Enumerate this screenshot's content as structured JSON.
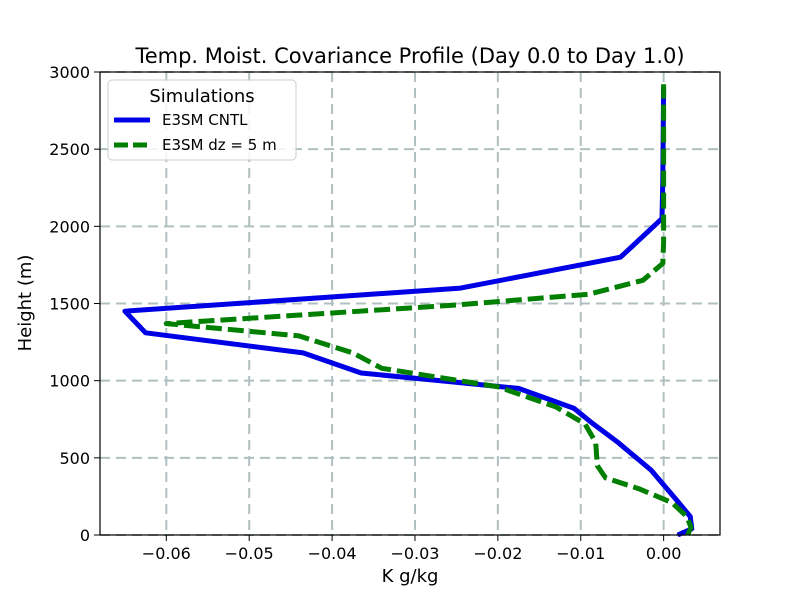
{
  "chart_data": {
    "type": "line",
    "title": "Temp. Moist. Covariance Profile (Day 0.0 to Day 1.0)",
    "xlabel": "K g/kg",
    "ylabel": "Height (m)",
    "xlim": [
      -0.068,
      0.0068
    ],
    "ylim": [
      0,
      3000
    ],
    "xticks": [
      -0.06,
      -0.05,
      -0.04,
      -0.03,
      -0.02,
      -0.01,
      0.0
    ],
    "xtick_labels": [
      "−0.06",
      "−0.05",
      "−0.04",
      "−0.03",
      "−0.02",
      "−0.01",
      "0.00"
    ],
    "yticks": [
      0,
      500,
      1000,
      1500,
      2000,
      2500,
      3000
    ],
    "ytick_labels": [
      "0",
      "500",
      "1000",
      "1500",
      "2000",
      "2500",
      "3000"
    ],
    "grid": true,
    "legend": {
      "title": "Simulations",
      "location": "upper-left"
    },
    "series": [
      {
        "name": "E3SM CNTL",
        "color": "#0000e6",
        "style": "solid",
        "points": [
          {
            "x": 0.0017,
            "y": 0
          },
          {
            "x": 0.0034,
            "y": 40
          },
          {
            "x": 0.0032,
            "y": 120
          },
          {
            "x": 0.0015,
            "y": 230
          },
          {
            "x": -0.0015,
            "y": 420
          },
          {
            "x": -0.0055,
            "y": 600
          },
          {
            "x": -0.0085,
            "y": 720
          },
          {
            "x": -0.0108,
            "y": 820
          },
          {
            "x": -0.0175,
            "y": 950
          },
          {
            "x": -0.0365,
            "y": 1050
          },
          {
            "x": -0.0435,
            "y": 1180
          },
          {
            "x": -0.0625,
            "y": 1310
          },
          {
            "x": -0.065,
            "y": 1450
          },
          {
            "x": -0.0245,
            "y": 1600
          },
          {
            "x": -0.0052,
            "y": 1800
          },
          {
            "x": -0.0002,
            "y": 2050
          },
          {
            "x": -0.0001,
            "y": 2300
          },
          {
            "x": 0.0,
            "y": 2900
          }
        ]
      },
      {
        "name": "E3SM dz = 5 m",
        "color": "#007f00",
        "style": "dashed",
        "points": [
          {
            "x": 0.0029,
            "y": 0
          },
          {
            "x": 0.0033,
            "y": 50
          },
          {
            "x": 0.0028,
            "y": 120
          },
          {
            "x": 0.001,
            "y": 210
          },
          {
            "x": -0.003,
            "y": 300
          },
          {
            "x": -0.007,
            "y": 370
          },
          {
            "x": -0.008,
            "y": 450
          },
          {
            "x": -0.0082,
            "y": 600
          },
          {
            "x": -0.0095,
            "y": 720
          },
          {
            "x": -0.013,
            "y": 830
          },
          {
            "x": -0.02,
            "y": 960
          },
          {
            "x": -0.034,
            "y": 1080
          },
          {
            "x": -0.0375,
            "y": 1180
          },
          {
            "x": -0.044,
            "y": 1290
          },
          {
            "x": -0.06,
            "y": 1370
          },
          {
            "x": -0.025,
            "y": 1490
          },
          {
            "x": -0.009,
            "y": 1560
          },
          {
            "x": -0.0025,
            "y": 1650
          },
          {
            "x": -0.0001,
            "y": 1760
          },
          {
            "x": 0.0,
            "y": 1900
          },
          {
            "x": 0.0,
            "y": 2400
          },
          {
            "x": 0.0,
            "y": 2920
          }
        ]
      }
    ]
  }
}
